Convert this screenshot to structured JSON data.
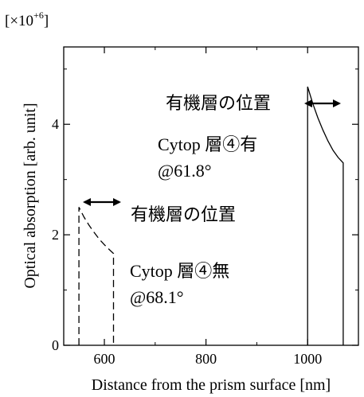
{
  "chart_data": {
    "type": "line",
    "scale_label": "[×10+6]",
    "xlabel": "Distance from the prism surface [nm]",
    "ylabel": "Optical absorption [arb. unit]",
    "xlim": [
      520,
      1100
    ],
    "ylim": [
      0,
      5.4
    ],
    "xticks": [
      600,
      800,
      1000
    ],
    "yticks": [
      0,
      2,
      4
    ],
    "grid": false,
    "legend": "none",
    "series": [
      {
        "style": "dashed",
        "x": [
          550,
          550,
          560,
          570,
          580,
          590,
          600,
          610,
          618,
          618
        ],
        "y": [
          0,
          2.5,
          2.32,
          2.17,
          2.04,
          1.92,
          1.82,
          1.73,
          1.66,
          0
        ]
      },
      {
        "style": "solid",
        "x": [
          1000,
          1000,
          1010,
          1020,
          1030,
          1040,
          1050,
          1060,
          1070,
          1070
        ],
        "y": [
          0,
          4.68,
          4.38,
          4.12,
          3.9,
          3.7,
          3.53,
          3.4,
          3.3,
          0
        ]
      }
    ],
    "annotations": [
      {
        "id": "upper_label",
        "text": "有機層の位置",
        "arrow": "both"
      },
      {
        "id": "upper_desc_1",
        "text": "Cytop 層④有"
      },
      {
        "id": "upper_desc_2",
        "text": "@61.8°"
      },
      {
        "id": "lower_label",
        "text": "有機層の位置",
        "arrow": "both"
      },
      {
        "id": "lower_desc_1",
        "text": "Cytop 層④無"
      },
      {
        "id": "lower_desc_2",
        "text": "@68.1°"
      }
    ]
  }
}
